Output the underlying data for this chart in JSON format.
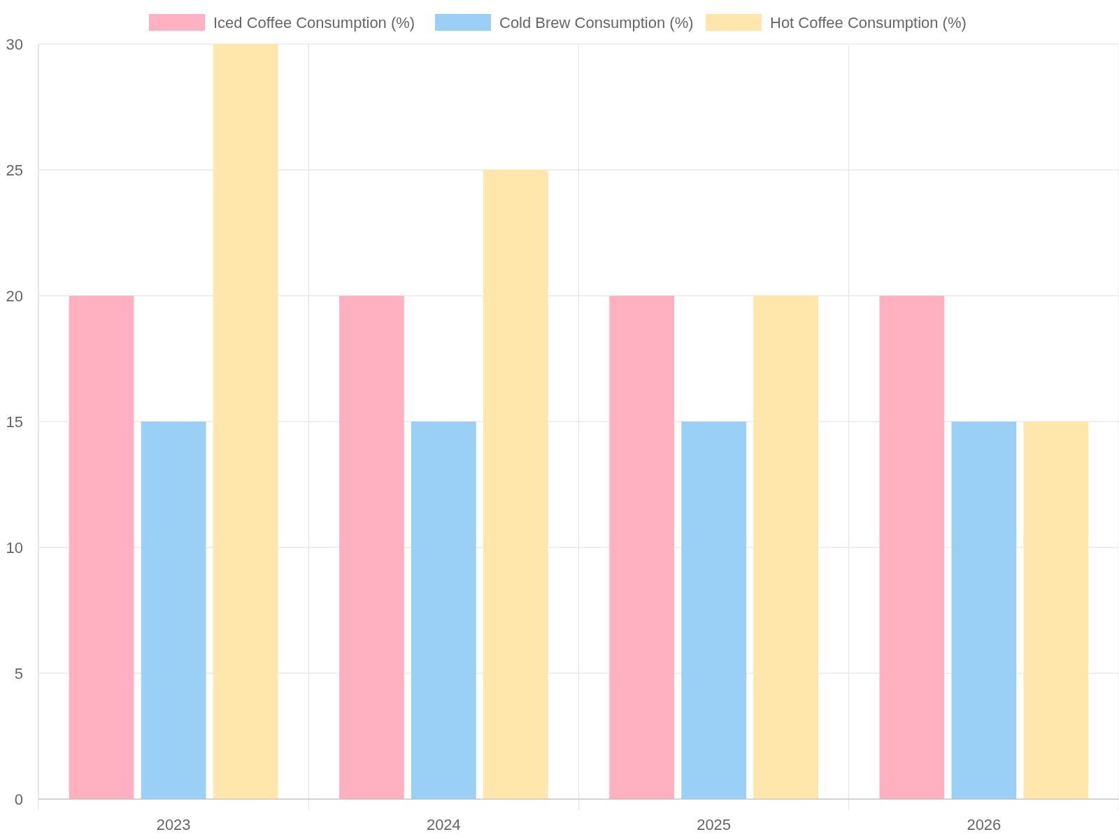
{
  "chart_data": {
    "type": "bar",
    "categories": [
      "2023",
      "2024",
      "2025",
      "2026"
    ],
    "series": [
      {
        "name": "Iced Coffee Consumption (%)",
        "color": "#ffb1c1",
        "values": [
          20,
          20,
          20,
          20
        ]
      },
      {
        "name": "Cold Brew Consumption (%)",
        "color": "#9ad0f5",
        "values": [
          15,
          15,
          15,
          15
        ]
      },
      {
        "name": "Hot Coffee Consumption (%)",
        "color": "#ffe6aa",
        "values": [
          30,
          25,
          20,
          15
        ]
      }
    ],
    "ylim": [
      0,
      30
    ],
    "yticks": [
      0,
      5,
      10,
      15,
      20,
      25,
      30
    ],
    "grid": true,
    "legend": "top"
  }
}
